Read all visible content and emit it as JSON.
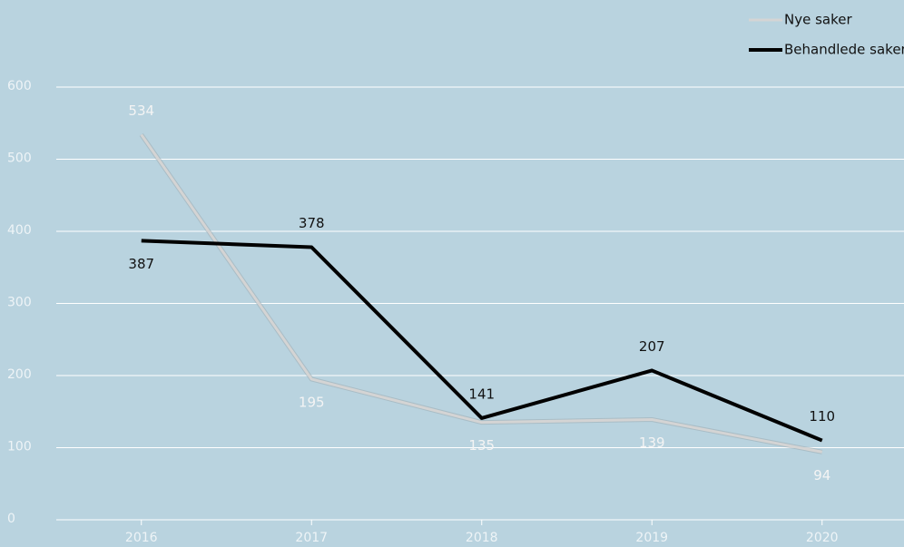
{
  "chart_data": {
    "type": "line",
    "categories": [
      "2016",
      "2017",
      "2018",
      "2019",
      "2020"
    ],
    "series": [
      {
        "name": "Nye saker",
        "color": "#d4d4d4",
        "values": [
          534,
          195,
          135,
          139,
          94
        ]
      },
      {
        "name": "Behandlede saker",
        "color": "#000000",
        "values": [
          387,
          378,
          141,
          207,
          110
        ]
      }
    ],
    "ylim": [
      0,
      600
    ],
    "yticks": [
      0,
      100,
      200,
      300,
      400,
      500,
      600
    ],
    "grid": true,
    "legend": "top-right"
  }
}
